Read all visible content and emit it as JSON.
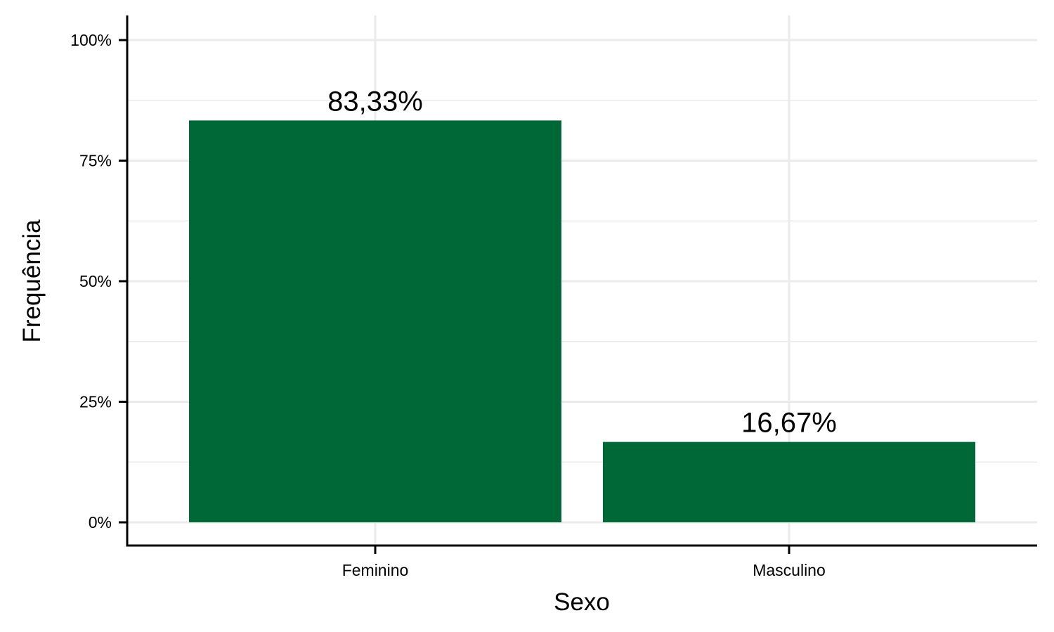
{
  "chart_data": {
    "type": "bar",
    "xlabel": "Sexo",
    "ylabel": "Frequência",
    "categories": [
      "Feminino",
      "Masculino"
    ],
    "values": [
      83.33,
      16.67
    ],
    "data_labels": [
      "83,33%",
      "16,67%"
    ],
    "ylim": [
      0,
      100
    ],
    "yticks": [
      0,
      25,
      50,
      75,
      100
    ],
    "ytick_labels": [
      "0%",
      "25%",
      "50%",
      "75%",
      "100%"
    ],
    "bar_color": "#006837",
    "grid": true,
    "legend": "none"
  }
}
